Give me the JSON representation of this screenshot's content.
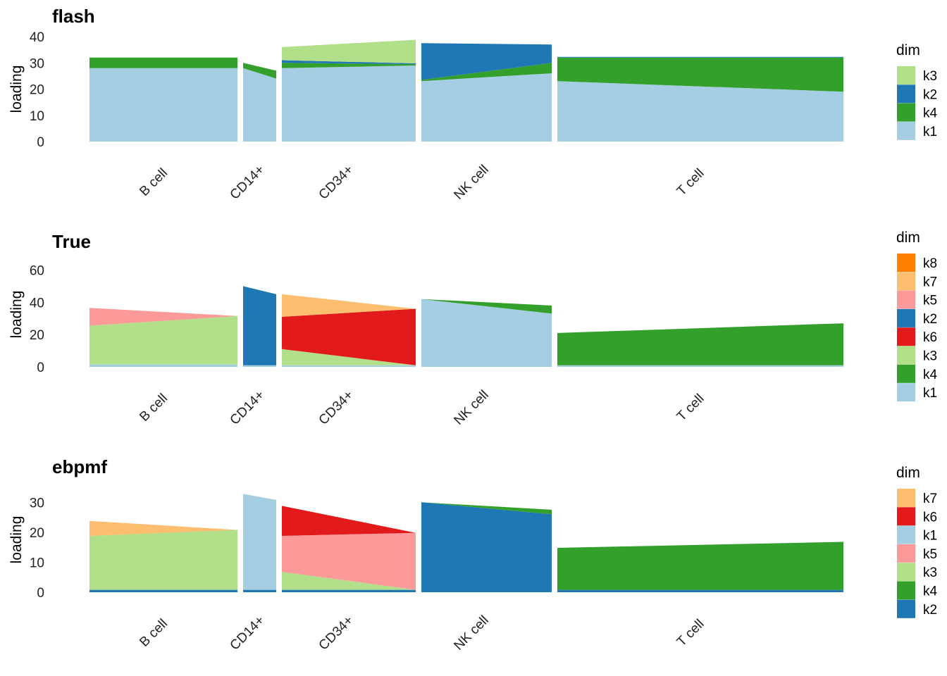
{
  "chart_data": [
    {
      "type": "bar",
      "title": "flash",
      "ylabel": "loading",
      "ylim": [
        0,
        40
      ],
      "yticks": [
        0,
        10,
        20,
        30,
        40
      ],
      "groups": [
        "B cell",
        "CD14+",
        "CD34+",
        "NK cell",
        "T cell"
      ],
      "legend_title": "dim",
      "legend": [
        "k3",
        "k2",
        "k4",
        "k1"
      ],
      "colors": {
        "k1": "#a6cee3",
        "k2": "#1f78b4",
        "k3": "#b2df8a",
        "k4": "#33a02c"
      },
      "segments": {
        "B cell": [
          {
            "k": "k1",
            "v": [
              28,
              28
            ]
          },
          {
            "k": "k4",
            "v": [
              4,
              4
            ]
          }
        ],
        "CD14+": [
          {
            "k": "k1",
            "v": [
              28,
              24
            ]
          },
          {
            "k": "k4",
            "v": [
              2,
              3
            ]
          }
        ],
        "CD34+": [
          {
            "k": "k1",
            "v": [
              28,
              29
            ]
          },
          {
            "k": "k4",
            "v": [
              2,
              0.5
            ]
          },
          {
            "k": "k2",
            "v": [
              1,
              0.3
            ]
          },
          {
            "k": "k3",
            "v": [
              5,
              9
            ]
          }
        ],
        "NK cell": [
          {
            "k": "k1",
            "v": [
              23,
              26
            ]
          },
          {
            "k": "k4",
            "v": [
              0.5,
              4
            ]
          },
          {
            "k": "k2",
            "v": [
              14,
              7
            ]
          }
        ],
        "T cell": [
          {
            "k": "k1",
            "v": [
              23,
              19
            ]
          },
          {
            "k": "k4",
            "v": [
              9,
              13
            ]
          },
          {
            "k": "k2",
            "v": [
              0.3,
              0.3
            ]
          }
        ]
      }
    },
    {
      "type": "bar",
      "title": "True",
      "ylabel": "loading",
      "ylim": [
        0,
        65
      ],
      "yticks": [
        0,
        20,
        40,
        60
      ],
      "groups": [
        "B cell",
        "CD14+",
        "CD34+",
        "NK cell",
        "T cell"
      ],
      "legend_title": "dim",
      "legend": [
        "k8",
        "k7",
        "k5",
        "k2",
        "k6",
        "k3",
        "k4",
        "k1"
      ],
      "colors": {
        "k1": "#a6cee3",
        "k2": "#1f78b4",
        "k3": "#b2df8a",
        "k4": "#33a02c",
        "k5": "#fb9a99",
        "k6": "#e31a1c",
        "k7": "#fdbf6f",
        "k8": "#ff7f00"
      },
      "segments": {
        "B cell": [
          {
            "k": "k1",
            "v": [
              1.5,
              1.5
            ]
          },
          {
            "k": "k3",
            "v": [
              24,
              30
            ]
          },
          {
            "k": "k5",
            "v": [
              11,
              0
            ]
          }
        ],
        "CD14+": [
          {
            "k": "k1",
            "v": [
              1,
              1
            ]
          },
          {
            "k": "k2",
            "v": [
              49,
              44
            ]
          }
        ],
        "CD34+": [
          {
            "k": "k1",
            "v": [
              1,
              1
            ]
          },
          {
            "k": "k3",
            "v": [
              10,
              0
            ]
          },
          {
            "k": "k6",
            "v": [
              20,
              35
            ]
          },
          {
            "k": "k7",
            "v": [
              14,
              0
            ]
          },
          {
            "k": "k2",
            "v": [
              0,
              0
            ]
          }
        ],
        "NK cell": [
          {
            "k": "k1",
            "v": [
              42,
              33
            ]
          },
          {
            "k": "k4",
            "v": [
              0,
              5
            ]
          }
        ],
        "T cell": [
          {
            "k": "k1",
            "v": [
              1,
              1
            ]
          },
          {
            "k": "k4",
            "v": [
              20,
              26
            ]
          },
          {
            "k": "k5",
            "v": [
              0,
              0
            ]
          }
        ]
      }
    },
    {
      "type": "bar",
      "title": "ebpmf",
      "ylabel": "loading",
      "ylim": [
        0,
        35
      ],
      "yticks": [
        0,
        10,
        20,
        30
      ],
      "groups": [
        "B cell",
        "CD14+",
        "CD34+",
        "NK cell",
        "T cell"
      ],
      "legend_title": "dim",
      "legend": [
        "k7",
        "k6",
        "k1",
        "k5",
        "k3",
        "k4",
        "k2"
      ],
      "colors": {
        "k1": "#a6cee3",
        "k2": "#1f78b4",
        "k3": "#b2df8a",
        "k4": "#33a02c",
        "k5": "#fb9a99",
        "k6": "#e31a1c",
        "k7": "#fdbf6f"
      },
      "segments": {
        "B cell": [
          {
            "k": "k2",
            "v": [
              0.8,
              0.8
            ]
          },
          {
            "k": "k3",
            "v": [
              18,
              20
            ]
          },
          {
            "k": "k7",
            "v": [
              5,
              0
            ]
          }
        ],
        "CD14+": [
          {
            "k": "k2",
            "v": [
              0.8,
              0.8
            ]
          },
          {
            "k": "k1",
            "v": [
              32,
              30
            ]
          }
        ],
        "CD34+": [
          {
            "k": "k2",
            "v": [
              0.8,
              0.8
            ]
          },
          {
            "k": "k3",
            "v": [
              6,
              0
            ]
          },
          {
            "k": "k5",
            "v": [
              12,
              19
            ]
          },
          {
            "k": "k6",
            "v": [
              10,
              0
            ]
          }
        ],
        "NK cell": [
          {
            "k": "k2",
            "v": [
              30,
              26
            ]
          },
          {
            "k": "k4",
            "v": [
              0,
              1.5
            ]
          }
        ],
        "T cell": [
          {
            "k": "k2",
            "v": [
              0.8,
              0.8
            ]
          },
          {
            "k": "k4",
            "v": [
              14,
              16
            ]
          },
          {
            "k": "k7",
            "v": [
              0,
              0
            ]
          }
        ]
      }
    }
  ]
}
